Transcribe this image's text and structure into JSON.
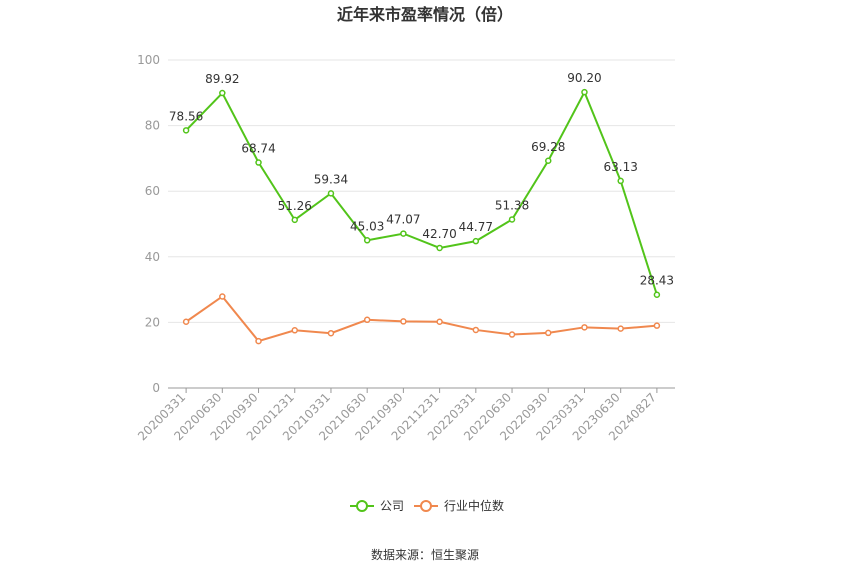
{
  "chart_data": {
    "type": "line",
    "title": "近年来市盈率情况（倍）",
    "categories": [
      "20200331",
      "20200630",
      "20200930",
      "20201231",
      "20210331",
      "20210630",
      "20210930",
      "20211231",
      "20220331",
      "20220630",
      "20220930",
      "20230331",
      "20230630",
      "20240827"
    ],
    "ylim": [
      0,
      100
    ],
    "yticks": [
      0,
      20,
      40,
      60,
      80,
      100
    ],
    "grid": true,
    "legend_position": "bottom",
    "series": [
      {
        "name": "公司",
        "color": "#52c41a",
        "values": [
          78.56,
          89.92,
          68.74,
          51.26,
          59.34,
          45.03,
          47.07,
          42.7,
          44.77,
          51.38,
          69.28,
          90.2,
          63.13,
          28.43
        ],
        "labels": [
          "78.56",
          "89.92",
          "68.74",
          "51.26",
          "59.34",
          "45.03",
          "47.07",
          "42.70",
          "44.77",
          "51.38",
          "69.28",
          "90.20",
          "63.13",
          "28.43"
        ]
      },
      {
        "name": "行业中位数",
        "color": "#f0884e",
        "values": [
          20.2,
          27.9,
          14.3,
          17.6,
          16.7,
          20.8,
          20.3,
          20.2,
          17.7,
          16.3,
          16.8,
          18.5,
          18.1,
          19.0
        ]
      }
    ]
  },
  "source_text": "数据来源：恒生聚源"
}
